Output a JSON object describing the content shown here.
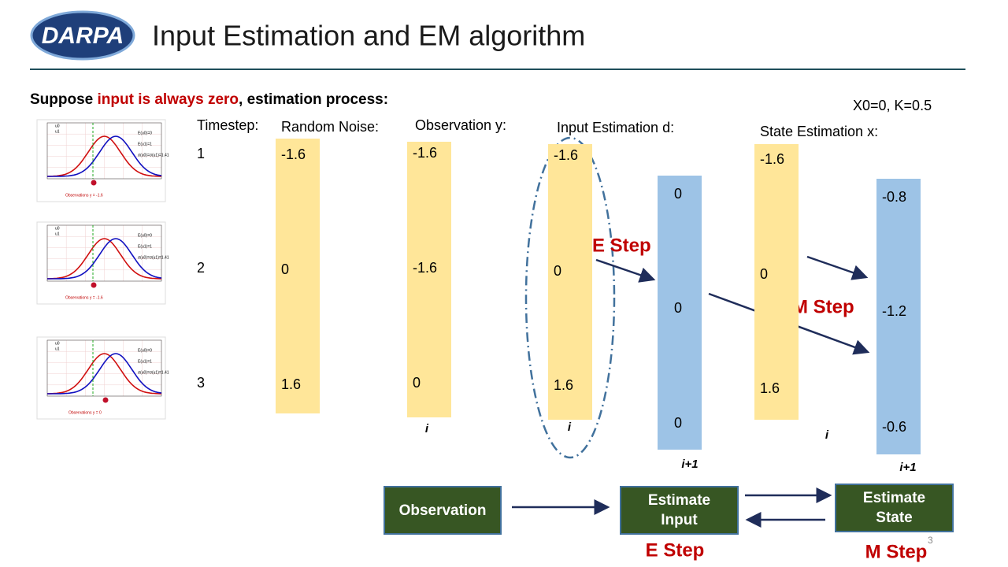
{
  "header": {
    "logo": "DARPA",
    "title": "Input Estimation and EM algorithm"
  },
  "intro": {
    "before": "Suppose ",
    "highlight": "input is always zero",
    "after": ", estimation process:"
  },
  "params": "X0=0, K=0.5",
  "plots": [
    {
      "legend": [
        "u0",
        "u1"
      ],
      "notes": [
        "E(u0)=0",
        "E(u1)=1",
        "σ(u0)=σ(u1)=1.41"
      ],
      "caption": "Observations y = -1.6"
    },
    {
      "legend": [
        "u0",
        "u1"
      ],
      "notes": [
        "E(u0)=0",
        "E(u1)=1",
        "σ(u0)=σ(u1)=1.41"
      ],
      "caption": "Observations y = -1.6"
    },
    {
      "legend": [
        "u0",
        "u1"
      ],
      "notes": [
        "E(u0)=0",
        "E(u1)=1",
        "σ(u0)=σ(u1)=1.41"
      ],
      "caption": "Observations y = 0"
    }
  ],
  "timestep": {
    "label": "Timestep:",
    "steps": [
      1,
      2,
      3
    ]
  },
  "columns": [
    {
      "label": "Random Noise:",
      "values": [
        -1.6,
        0,
        1.6
      ]
    },
    {
      "label": "Observation y:",
      "values": [
        -1.6,
        -1.6,
        0
      ],
      "index": "i"
    },
    {
      "label": "Input Estimation d:",
      "values": [
        -1.6,
        0,
        1.6
      ],
      "index": "i"
    },
    {
      "values": [
        0,
        0,
        0
      ],
      "index": "i+1"
    },
    {
      "label": "State Estimation x:",
      "values": [
        -1.6,
        0,
        1.6
      ],
      "index": "i"
    },
    {
      "values": [
        -0.8,
        -1.2,
        -0.6
      ],
      "index": "i+1"
    }
  ],
  "annotations": {
    "e_step": "E Step",
    "m_step": "M Step"
  },
  "flow": {
    "nodes": [
      "Observation",
      "Estimate Input",
      "Estimate State"
    ],
    "labels": [
      "E Step",
      "M Step"
    ]
  },
  "page_number": "3"
}
